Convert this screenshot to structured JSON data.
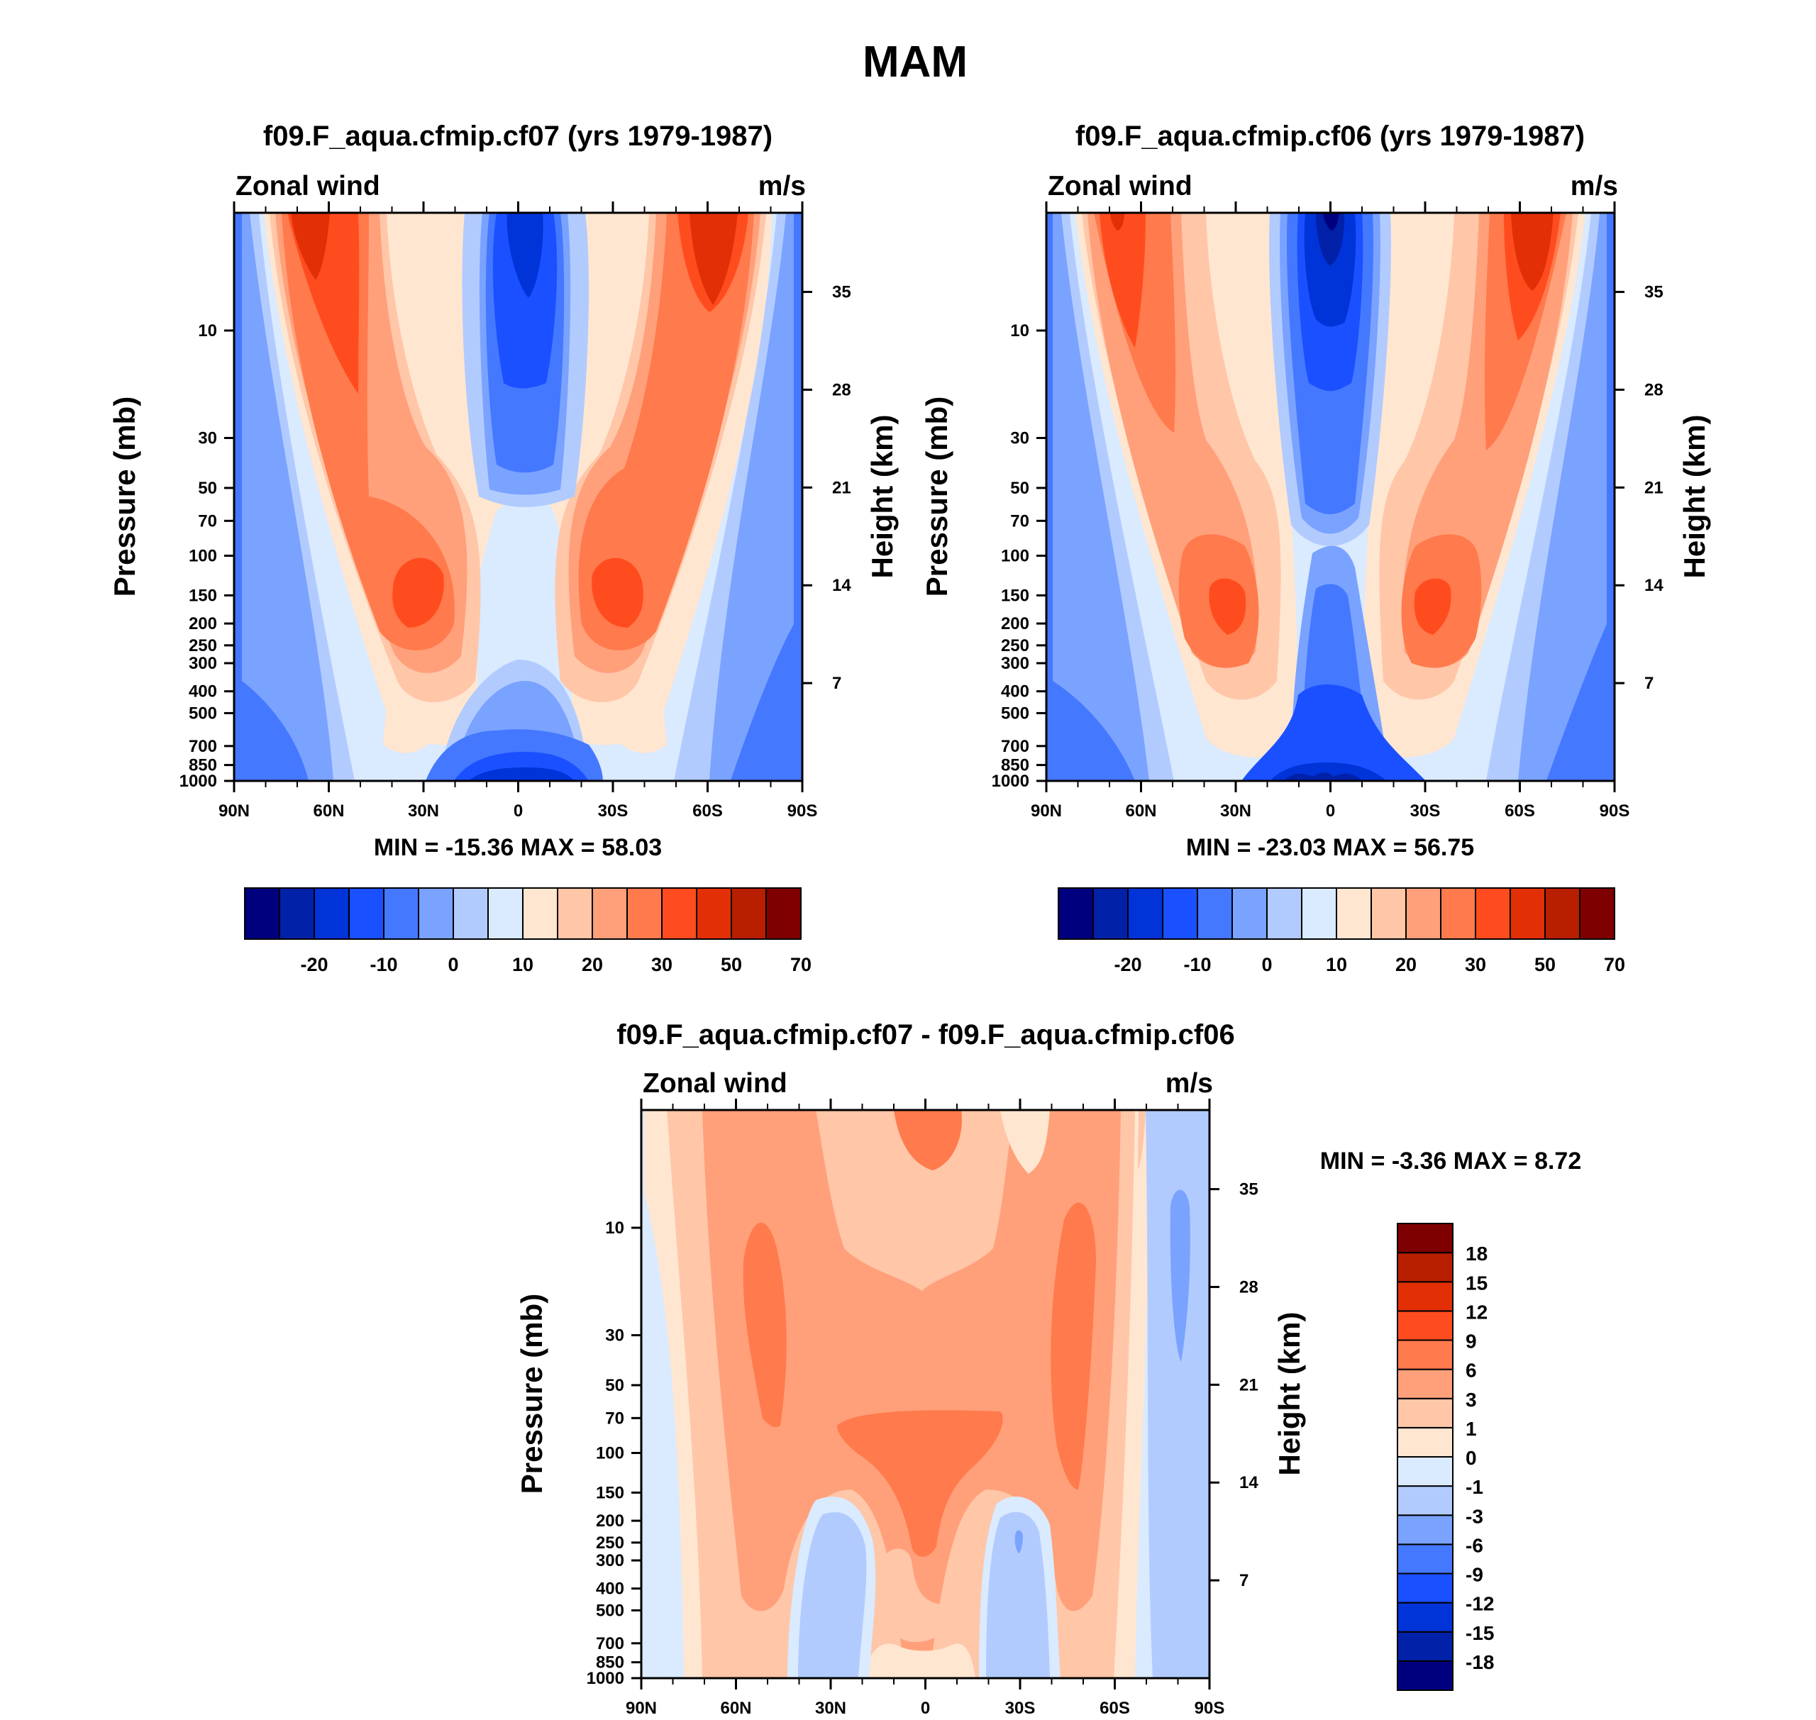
{
  "figure_title": "MAM",
  "chart_data": [
    {
      "type": "heatmap",
      "title": "f09.F_aqua.cfmip.cf07 (yrs 1979-1987)",
      "left_string": "Zonal wind",
      "right_string": "m/s",
      "xlabel": "",
      "ylabel": "Pressure (mb)",
      "ylabel_right": "Height (km)",
      "x_ticks": [
        "90N",
        "60N",
        "30N",
        "0",
        "30S",
        "60S",
        "90S"
      ],
      "y_ticks": [
        10,
        30,
        50,
        70,
        100,
        150,
        200,
        250,
        300,
        400,
        500,
        700,
        850,
        1000
      ],
      "height_ticks": [
        35,
        28,
        21,
        14,
        7
      ],
      "ylim": [
        1000,
        3
      ],
      "xlim": [
        90,
        -90
      ],
      "stats": "MIN = -15.36  MAX =  58.03",
      "min": -15.36,
      "max": 58.03,
      "levels": [
        -25,
        -20,
        -15,
        -10,
        -5,
        0,
        5,
        10,
        15,
        20,
        25,
        30,
        40,
        50,
        60,
        70
      ],
      "colorbar_labels": [
        "-20",
        "-10",
        "0",
        "10",
        "20",
        "30",
        "50",
        "70"
      ],
      "colors": [
        "#00007f",
        "#0021a8",
        "#0033d8",
        "#1a50ff",
        "#4478ff",
        "#7aa2ff",
        "#b2cbff",
        "#daeaff",
        "#ffe6d1",
        "#ffc6a8",
        "#ffa07a",
        "#ff7a4c",
        "#ff4c1f",
        "#e22f05",
        "#b81e00",
        "#7f0000"
      ]
    },
    {
      "type": "heatmap",
      "title": "f09.F_aqua.cfmip.cf06 (yrs 1979-1987)",
      "left_string": "Zonal wind",
      "right_string": "m/s",
      "xlabel": "",
      "ylabel": "Pressure (mb)",
      "ylabel_right": "Height (km)",
      "x_ticks": [
        "90N",
        "60N",
        "30N",
        "0",
        "30S",
        "60S",
        "90S"
      ],
      "y_ticks": [
        10,
        30,
        50,
        70,
        100,
        150,
        200,
        250,
        300,
        400,
        500,
        700,
        850,
        1000
      ],
      "height_ticks": [
        35,
        28,
        21,
        14,
        7
      ],
      "ylim": [
        1000,
        3
      ],
      "xlim": [
        90,
        -90
      ],
      "stats": "MIN = -23.03  MAX =  56.75",
      "min": -23.03,
      "max": 56.75,
      "levels": [
        -25,
        -20,
        -15,
        -10,
        -5,
        0,
        5,
        10,
        15,
        20,
        25,
        30,
        40,
        50,
        60,
        70
      ],
      "colorbar_labels": [
        "-20",
        "-10",
        "0",
        "10",
        "20",
        "30",
        "50",
        "70"
      ],
      "colors": [
        "#00007f",
        "#0021a8",
        "#0033d8",
        "#1a50ff",
        "#4478ff",
        "#7aa2ff",
        "#b2cbff",
        "#daeaff",
        "#ffe6d1",
        "#ffc6a8",
        "#ffa07a",
        "#ff7a4c",
        "#ff4c1f",
        "#e22f05",
        "#b81e00",
        "#7f0000"
      ]
    },
    {
      "type": "heatmap",
      "title": "f09.F_aqua.cfmip.cf07 - f09.F_aqua.cfmip.cf06",
      "left_string": "Zonal wind",
      "right_string": "m/s",
      "xlabel": "",
      "ylabel": "Pressure (mb)",
      "ylabel_right": "Height (km)",
      "x_ticks": [
        "90N",
        "60N",
        "30N",
        "0",
        "30S",
        "60S",
        "90S"
      ],
      "y_ticks": [
        10,
        30,
        50,
        70,
        100,
        150,
        200,
        250,
        300,
        400,
        500,
        700,
        850,
        1000
      ],
      "height_ticks": [
        35,
        28,
        21,
        14,
        7
      ],
      "ylim": [
        1000,
        3
      ],
      "xlim": [
        90,
        -90
      ],
      "stats": "MIN =  -3.36  MAX =   8.72",
      "min": -3.36,
      "max": 8.72,
      "levels": [
        -18,
        -15,
        -12,
        -9,
        -6,
        -3,
        -1,
        0,
        1,
        3,
        6,
        9,
        12,
        15,
        18
      ],
      "colorbar_labels": [
        "-18",
        "-15",
        "-12",
        "-9",
        "-6",
        "-3",
        "-1",
        "0",
        "1",
        "3",
        "6",
        "9",
        "12",
        "15",
        "18"
      ],
      "colors": [
        "#00007f",
        "#0021a8",
        "#0033d8",
        "#1a50ff",
        "#4478ff",
        "#7aa2ff",
        "#b2cbff",
        "#daeaff",
        "#ffe6d1",
        "#ffc6a8",
        "#ffa07a",
        "#ff7a4c",
        "#ff4c1f",
        "#e22f05",
        "#b81e00",
        "#7f0000"
      ]
    }
  ]
}
